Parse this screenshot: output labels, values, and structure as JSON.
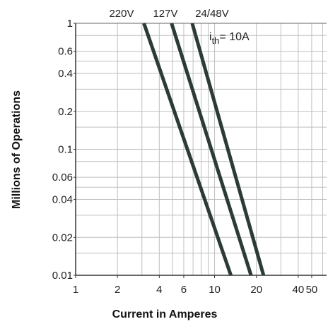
{
  "chart_data": {
    "type": "line",
    "xscale": "log",
    "yscale": "log",
    "xlabel": "Current in Amperes",
    "ylabel": "Millions of Operations",
    "xlim": [
      1,
      64
    ],
    "ylim": [
      0.01,
      1
    ],
    "xticks": [
      1,
      2,
      4,
      6,
      10,
      20,
      40,
      50
    ],
    "xtick_labels": [
      "1",
      "2",
      "4",
      "6",
      "10",
      "20",
      "40",
      "50"
    ],
    "yticks": [
      1,
      0.6,
      0.4,
      0.2,
      0.1,
      0.06,
      0.04,
      0.02,
      0.01
    ],
    "ytick_labels": [
      "1",
      "0.6",
      "0.4",
      "0.2",
      "0.1",
      "0.06",
      "0.04",
      "0.02",
      "0.01"
    ],
    "annotation": {
      "symbol": "i",
      "subscript": "th",
      "text": "= 10A"
    },
    "grid": true,
    "line_color": "#2d3b38",
    "series": [
      {
        "name": "220V",
        "x": [
          3.1,
          13.1
        ],
        "y": [
          1,
          0.01
        ]
      },
      {
        "name": "127V",
        "x": [
          4.9,
          18.3
        ],
        "y": [
          1,
          0.01
        ]
      },
      {
        "name": "24/48V",
        "x": [
          6.9,
          22.5
        ],
        "y": [
          1,
          0.01
        ]
      }
    ]
  }
}
